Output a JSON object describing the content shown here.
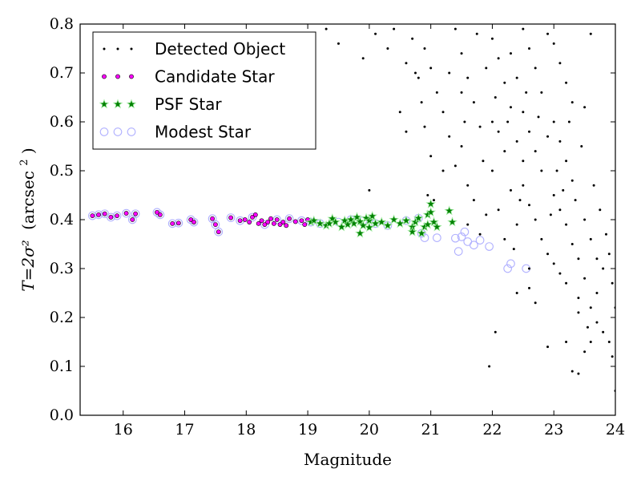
{
  "chart_data": {
    "type": "scatter",
    "xlabel": "Magnitude",
    "ylabel_math": "T=2σ²",
    "ylabel_unit_base": "(arcsec",
    "ylabel_unit_sup": "2",
    "ylabel_unit_close": ")",
    "xlim": [
      15.3,
      24
    ],
    "ylim": [
      0.0,
      0.8
    ],
    "x_ticks": [
      16,
      17,
      18,
      19,
      20,
      21,
      22,
      23,
      24
    ],
    "y_ticks": [
      0.0,
      0.1,
      0.2,
      0.3,
      0.4,
      0.5,
      0.6,
      0.7,
      0.8
    ],
    "y_tick_labels": [
      "0.0",
      "0.1",
      "0.2",
      "0.3",
      "0.4",
      "0.5",
      "0.6",
      "0.7",
      "0.8"
    ],
    "legend_position": "top-left",
    "series": [
      {
        "name": "Detected Object",
        "marker": "dot",
        "color": "#000000",
        "points": [
          [
            19.3,
            0.79
          ],
          [
            19.5,
            0.76
          ],
          [
            19.9,
            0.73
          ],
          [
            20.1,
            0.78
          ],
          [
            20.4,
            0.79
          ],
          [
            20.7,
            0.77
          ],
          [
            20.9,
            0.75
          ],
          [
            21.0,
            0.71
          ],
          [
            20.8,
            0.69
          ],
          [
            20.6,
            0.72
          ],
          [
            20.3,
            0.75
          ],
          [
            21.1,
            0.66
          ],
          [
            21.2,
            0.62
          ],
          [
            21.3,
            0.57
          ],
          [
            20.9,
            0.59
          ],
          [
            21.0,
            0.53
          ],
          [
            21.2,
            0.5
          ],
          [
            20.95,
            0.45
          ],
          [
            21.05,
            0.44
          ],
          [
            20.0,
            0.46
          ],
          [
            20.75,
            0.7
          ],
          [
            20.5,
            0.62
          ],
          [
            21.4,
            0.79
          ],
          [
            21.5,
            0.74
          ],
          [
            21.6,
            0.69
          ],
          [
            21.7,
            0.64
          ],
          [
            21.8,
            0.59
          ],
          [
            21.5,
            0.55
          ],
          [
            21.4,
            0.51
          ],
          [
            21.6,
            0.47
          ],
          [
            21.7,
            0.44
          ],
          [
            21.9,
            0.41
          ],
          [
            21.5,
            0.66
          ],
          [
            21.9,
            0.71
          ],
          [
            22.0,
            0.77
          ],
          [
            22.1,
            0.73
          ],
          [
            22.2,
            0.68
          ],
          [
            22.3,
            0.63
          ],
          [
            22.1,
            0.58
          ],
          [
            22.2,
            0.54
          ],
          [
            22.0,
            0.5
          ],
          [
            22.3,
            0.46
          ],
          [
            22.1,
            0.42
          ],
          [
            22.4,
            0.39
          ],
          [
            22.2,
            0.36
          ],
          [
            22.0,
            0.6
          ],
          [
            22.5,
            0.79
          ],
          [
            22.6,
            0.75
          ],
          [
            22.7,
            0.71
          ],
          [
            22.8,
            0.66
          ],
          [
            22.5,
            0.62
          ],
          [
            22.6,
            0.58
          ],
          [
            22.7,
            0.54
          ],
          [
            22.8,
            0.5
          ],
          [
            22.5,
            0.47
          ],
          [
            22.6,
            0.43
          ],
          [
            22.7,
            0.4
          ],
          [
            22.8,
            0.36
          ],
          [
            22.9,
            0.33
          ],
          [
            22.6,
            0.3
          ],
          [
            22.5,
            0.52
          ],
          [
            22.9,
            0.57
          ],
          [
            22.4,
            0.69
          ],
          [
            22.3,
            0.74
          ],
          [
            22.9,
            0.78
          ],
          [
            22.4,
            0.56
          ],
          [
            22.55,
            0.66
          ],
          [
            22.75,
            0.61
          ],
          [
            23.0,
            0.76
          ],
          [
            23.1,
            0.72
          ],
          [
            23.2,
            0.68
          ],
          [
            23.3,
            0.64
          ],
          [
            23.0,
            0.6
          ],
          [
            23.1,
            0.56
          ],
          [
            23.2,
            0.52
          ],
          [
            23.3,
            0.48
          ],
          [
            23.0,
            0.45
          ],
          [
            23.1,
            0.42
          ],
          [
            23.2,
            0.39
          ],
          [
            23.3,
            0.35
          ],
          [
            23.4,
            0.32
          ],
          [
            23.1,
            0.29
          ],
          [
            23.2,
            0.27
          ],
          [
            23.05,
            0.5
          ],
          [
            23.25,
            0.6
          ],
          [
            23.15,
            0.46
          ],
          [
            22.95,
            0.41
          ],
          [
            23.35,
            0.44
          ],
          [
            23.45,
            0.55
          ],
          [
            23.5,
            0.63
          ],
          [
            23.6,
            0.78
          ],
          [
            23.5,
            0.4
          ],
          [
            23.6,
            0.36
          ],
          [
            23.7,
            0.32
          ],
          [
            23.5,
            0.28
          ],
          [
            23.4,
            0.24
          ],
          [
            23.6,
            0.22
          ],
          [
            23.7,
            0.19
          ],
          [
            23.8,
            0.17
          ],
          [
            23.6,
            0.15
          ],
          [
            23.5,
            0.13
          ],
          [
            23.7,
            0.25
          ],
          [
            23.8,
            0.3
          ],
          [
            23.4,
            0.21
          ],
          [
            23.55,
            0.18
          ],
          [
            23.65,
            0.47
          ],
          [
            23.75,
            0.42
          ],
          [
            23.85,
            0.37
          ],
          [
            23.9,
            0.33
          ],
          [
            23.95,
            0.27
          ],
          [
            24.0,
            0.22
          ],
          [
            23.9,
            0.15
          ],
          [
            23.95,
            0.12
          ],
          [
            24.0,
            0.05
          ],
          [
            23.3,
            0.09
          ],
          [
            23.4,
            0.085
          ],
          [
            23.2,
            0.15
          ],
          [
            22.9,
            0.14
          ],
          [
            22.05,
            0.17
          ],
          [
            21.95,
            0.1
          ],
          [
            22.4,
            0.25
          ],
          [
            22.7,
            0.23
          ],
          [
            23.0,
            0.31
          ],
          [
            22.6,
            0.26
          ],
          [
            22.35,
            0.34
          ],
          [
            21.8,
            0.37
          ],
          [
            21.6,
            0.39
          ],
          [
            21.85,
            0.52
          ],
          [
            21.3,
            0.7
          ],
          [
            21.55,
            0.6
          ],
          [
            20.85,
            0.64
          ],
          [
            20.6,
            0.58
          ],
          [
            21.75,
            0.78
          ],
          [
            22.05,
            0.65
          ],
          [
            22.25,
            0.6
          ],
          [
            22.45,
            0.44
          ]
        ]
      },
      {
        "name": "Candidate Star",
        "marker": "small-circle",
        "color": "#ff00ff",
        "points": [
          [
            15.5,
            0.408
          ],
          [
            15.6,
            0.41
          ],
          [
            15.7,
            0.412
          ],
          [
            15.8,
            0.405
          ],
          [
            15.9,
            0.408
          ],
          [
            16.05,
            0.413
          ],
          [
            16.15,
            0.4
          ],
          [
            16.2,
            0.412
          ],
          [
            16.55,
            0.415
          ],
          [
            16.6,
            0.41
          ],
          [
            16.8,
            0.392
          ],
          [
            16.9,
            0.393
          ],
          [
            17.1,
            0.4
          ],
          [
            17.15,
            0.395
          ],
          [
            17.45,
            0.402
          ],
          [
            17.5,
            0.39
          ],
          [
            17.55,
            0.375
          ],
          [
            17.75,
            0.404
          ],
          [
            17.9,
            0.398
          ],
          [
            17.98,
            0.4
          ],
          [
            18.05,
            0.395
          ],
          [
            18.1,
            0.405
          ],
          [
            18.15,
            0.41
          ],
          [
            18.2,
            0.392
          ],
          [
            18.25,
            0.398
          ],
          [
            18.3,
            0.39
          ],
          [
            18.35,
            0.395
          ],
          [
            18.4,
            0.402
          ],
          [
            18.45,
            0.392
          ],
          [
            18.5,
            0.4
          ],
          [
            18.55,
            0.39
          ],
          [
            18.6,
            0.395
          ],
          [
            18.65,
            0.388
          ],
          [
            18.7,
            0.402
          ],
          [
            18.8,
            0.396
          ],
          [
            18.9,
            0.398
          ],
          [
            18.95,
            0.39
          ],
          [
            19.0,
            0.4
          ]
        ]
      },
      {
        "name": "PSF Star",
        "marker": "star",
        "color": "#008000",
        "points": [
          [
            19.05,
            0.395
          ],
          [
            19.1,
            0.398
          ],
          [
            19.2,
            0.392
          ],
          [
            19.3,
            0.388
          ],
          [
            19.4,
            0.402
          ],
          [
            19.45,
            0.395
          ],
          [
            19.55,
            0.385
          ],
          [
            19.6,
            0.398
          ],
          [
            19.7,
            0.4
          ],
          [
            19.75,
            0.392
          ],
          [
            19.8,
            0.405
          ],
          [
            19.85,
            0.396
          ],
          [
            19.9,
            0.388
          ],
          [
            19.95,
            0.403
          ],
          [
            20.0,
            0.398
          ],
          [
            20.05,
            0.407
          ],
          [
            20.1,
            0.392
          ],
          [
            20.2,
            0.395
          ],
          [
            20.3,
            0.388
          ],
          [
            20.4,
            0.4
          ],
          [
            20.5,
            0.392
          ],
          [
            20.6,
            0.398
          ],
          [
            20.7,
            0.385
          ],
          [
            20.75,
            0.395
          ],
          [
            20.8,
            0.403
          ],
          [
            20.85,
            0.372
          ],
          [
            20.9,
            0.385
          ],
          [
            20.95,
            0.41
          ],
          [
            21.0,
            0.415
          ],
          [
            21.05,
            0.395
          ],
          [
            21.1,
            0.385
          ],
          [
            21.3,
            0.418
          ],
          [
            21.35,
            0.395
          ],
          [
            20.7,
            0.375
          ],
          [
            19.85,
            0.372
          ],
          [
            20.0,
            0.384
          ],
          [
            21.0,
            0.432
          ],
          [
            20.95,
            0.39
          ],
          [
            19.65,
            0.39
          ],
          [
            19.35,
            0.392
          ]
        ]
      },
      {
        "name": "Modest Star",
        "marker": "open-circle",
        "color": "#b0b0ff",
        "points": [
          [
            15.5,
            0.408
          ],
          [
            15.6,
            0.41
          ],
          [
            15.7,
            0.412
          ],
          [
            15.8,
            0.405
          ],
          [
            15.9,
            0.408
          ],
          [
            16.05,
            0.413
          ],
          [
            16.15,
            0.4
          ],
          [
            16.2,
            0.412
          ],
          [
            16.55,
            0.415
          ],
          [
            16.6,
            0.41
          ],
          [
            16.8,
            0.392
          ],
          [
            16.9,
            0.393
          ],
          [
            17.1,
            0.4
          ],
          [
            17.15,
            0.395
          ],
          [
            17.45,
            0.402
          ],
          [
            17.5,
            0.39
          ],
          [
            17.55,
            0.375
          ],
          [
            17.75,
            0.404
          ],
          [
            17.9,
            0.398
          ],
          [
            18.1,
            0.405
          ],
          [
            18.3,
            0.39
          ],
          [
            18.5,
            0.4
          ],
          [
            18.7,
            0.402
          ],
          [
            18.9,
            0.398
          ],
          [
            19.05,
            0.395
          ],
          [
            19.2,
            0.392
          ],
          [
            19.5,
            0.395
          ],
          [
            19.7,
            0.4
          ],
          [
            19.9,
            0.398
          ],
          [
            20.1,
            0.392
          ],
          [
            20.3,
            0.388
          ],
          [
            20.6,
            0.398
          ],
          [
            20.8,
            0.403
          ],
          [
            20.85,
            0.372
          ],
          [
            20.9,
            0.363
          ],
          [
            21.1,
            0.363
          ],
          [
            21.4,
            0.362
          ],
          [
            21.45,
            0.335
          ],
          [
            21.5,
            0.365
          ],
          [
            21.55,
            0.375
          ],
          [
            21.6,
            0.355
          ],
          [
            21.7,
            0.348
          ],
          [
            21.8,
            0.358
          ],
          [
            21.95,
            0.345
          ],
          [
            22.25,
            0.3
          ],
          [
            22.3,
            0.31
          ],
          [
            22.55,
            0.3
          ]
        ]
      }
    ]
  }
}
